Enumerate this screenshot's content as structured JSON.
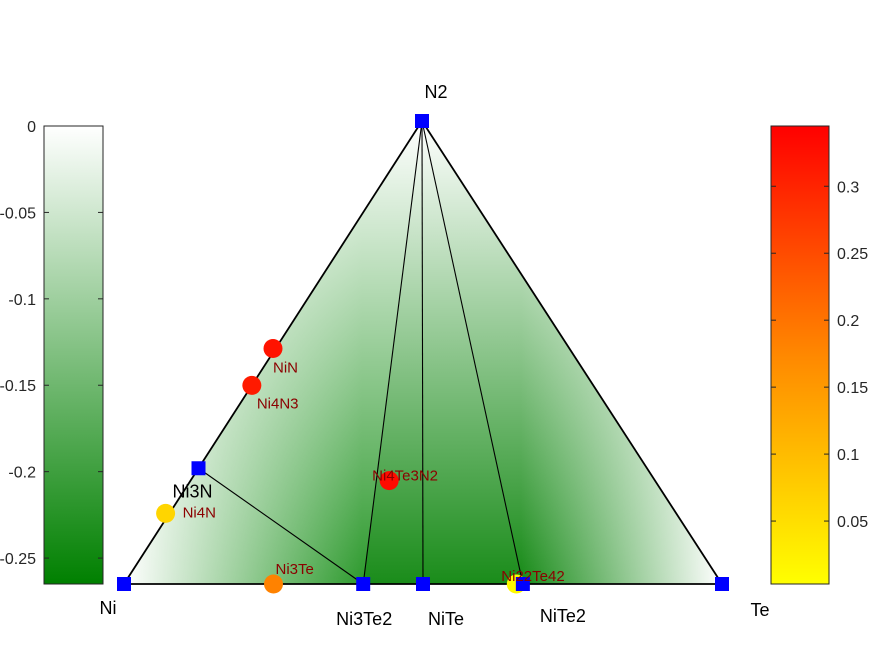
{
  "chart_data": {
    "type": "scatter",
    "title": "",
    "corners": [
      {
        "key": "Ni",
        "label": "Ni"
      },
      {
        "key": "Te",
        "label": "Te"
      },
      {
        "key": "N2",
        "label": "N2"
      }
    ],
    "stable_phases": [
      {
        "name": "Ni",
        "label": "Ni",
        "coords": [
          1,
          0,
          0
        ]
      },
      {
        "name": "Te",
        "label": "Te",
        "coords": [
          0,
          1,
          0
        ]
      },
      {
        "name": "N2",
        "label": "N2",
        "coords": [
          0,
          0,
          1
        ]
      },
      {
        "name": "Ni3N",
        "label": "Ni3N",
        "coords": [
          0.75,
          0,
          0.25
        ]
      },
      {
        "name": "Ni3Te2",
        "label": "Ni3Te2",
        "coords": [
          0.6,
          0.4,
          0
        ]
      },
      {
        "name": "NiTe",
        "label": "NiTe",
        "coords": [
          0.5,
          0.5,
          0
        ]
      },
      {
        "name": "NiTe2",
        "label": "NiTe2",
        "coords": [
          0.333,
          0.667,
          0
        ]
      }
    ],
    "tie_lines": [
      [
        "Ni",
        "Ni3N"
      ],
      [
        "Ni3N",
        "N2"
      ],
      [
        "N2",
        "Te"
      ],
      [
        "Ni",
        "Ni3Te2"
      ],
      [
        "Ni3Te2",
        "NiTe"
      ],
      [
        "NiTe",
        "NiTe2"
      ],
      [
        "NiTe2",
        "Te"
      ],
      [
        "Ni3N",
        "Ni3Te2"
      ],
      [
        "Ni3Te2",
        "N2"
      ],
      [
        "NiTe",
        "N2"
      ],
      [
        "NiTe2",
        "N2"
      ]
    ],
    "unstable_phases": [
      {
        "label": "NiN",
        "coords": [
          0.5,
          0,
          0.5
        ],
        "e_above_hull": 0.32
      },
      {
        "label": "Ni4N3",
        "coords": [
          0.571,
          0,
          0.429
        ],
        "e_above_hull": 0.31
      },
      {
        "label": "Ni4N",
        "coords": [
          0.8,
          0,
          0.2
        ],
        "e_above_hull": 0.06
      },
      {
        "label": "Ni4Te3N2",
        "coords": [
          0.444,
          0.333,
          0.222
        ],
        "e_above_hull": 0.33
      },
      {
        "label": "Ni3Te",
        "coords": [
          0.75,
          0.25,
          0
        ],
        "e_above_hull": 0.17
      },
      {
        "label": "Ni22Te42",
        "coords": [
          0.344,
          0.656,
          0
        ],
        "e_above_hull": 0.01
      }
    ],
    "formation_energy_colorbar": {
      "range": [
        -0.265,
        0
      ],
      "ticks": [
        "0",
        "-0.05",
        "-0.1",
        "-0.15",
        "-0.2",
        "-0.25"
      ],
      "tick_values": [
        0,
        -0.05,
        -0.1,
        -0.15,
        -0.2,
        -0.25
      ],
      "colors": [
        "#008000",
        "#ffffff"
      ]
    },
    "e_above_hull_colorbar": {
      "range": [
        0.003,
        0.345
      ],
      "ticks": [
        "0.05",
        "0.1",
        "0.15",
        "0.2",
        "0.25",
        "0.3"
      ],
      "tick_values": [
        0.05,
        0.1,
        0.15,
        0.2,
        0.25,
        0.3
      ],
      "colors": [
        "#ffff00",
        "#ff0000"
      ]
    },
    "grid": false
  }
}
